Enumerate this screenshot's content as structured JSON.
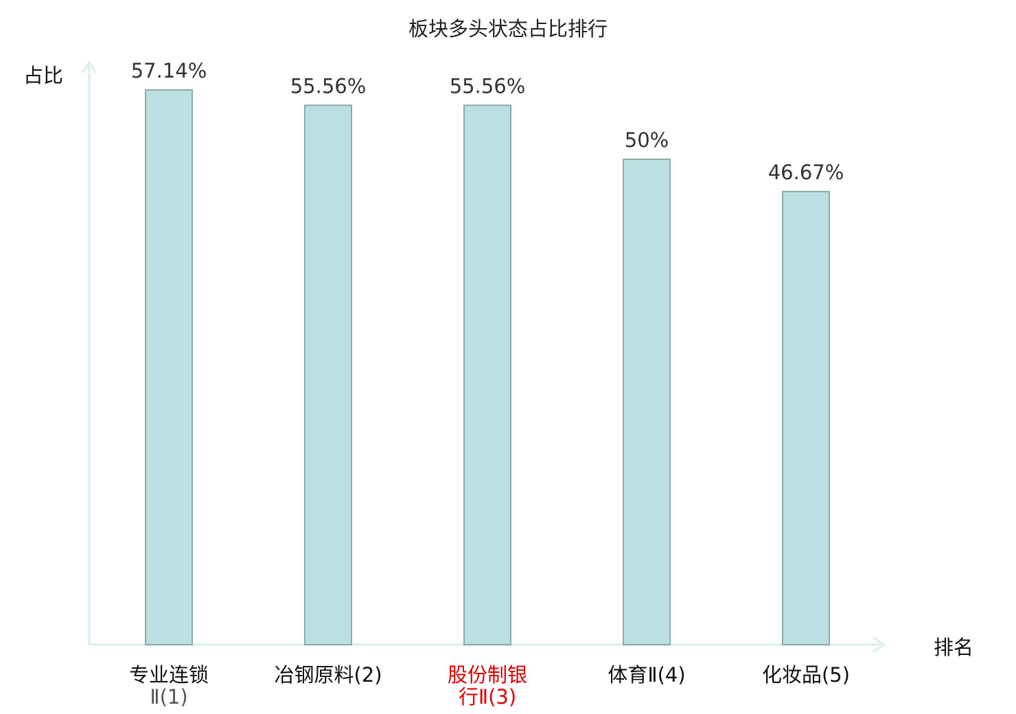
{
  "chart_data": {
    "type": "bar",
    "title": "板块多头状态占比排行",
    "ylabel": "占比",
    "xlabel": "排名",
    "categories": [
      {
        "line1": "专业连锁",
        "line2": "Ⅱ(1)",
        "highlight": false
      },
      {
        "line1": "冶钢原料(2)",
        "line2": "",
        "highlight": false
      },
      {
        "line1": "股份制银",
        "line2": "行Ⅱ(3)",
        "highlight": true
      },
      {
        "line1": "体育Ⅱ(4)",
        "line2": "",
        "highlight": false
      },
      {
        "line1": "化妆品(5)",
        "line2": "",
        "highlight": false
      }
    ],
    "values": [
      57.14,
      55.56,
      55.56,
      50,
      46.67
    ],
    "value_labels": [
      "57.14%",
      "55.56%",
      "55.56%",
      "50%",
      "46.67%"
    ],
    "ylim": [
      0,
      57.14
    ],
    "grid": false,
    "colors": {
      "bar_fill": "#bce0e1",
      "bar_stroke": "#8fa9aa",
      "axis": "#e0f2ef",
      "highlight_text": "#e00000",
      "normal_text": "#111111",
      "normal_suffix_text": "#555555"
    }
  }
}
